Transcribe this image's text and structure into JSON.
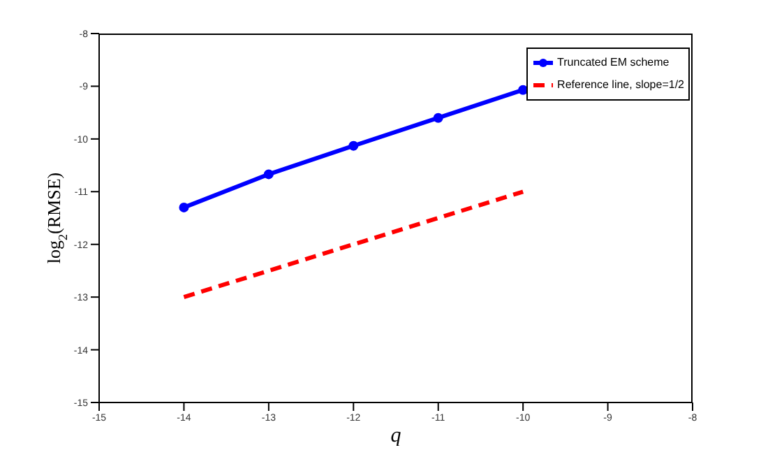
{
  "chart_data": {
    "type": "line",
    "xlabel": "q",
    "ylabel": "log$_{2}$(RMSE)",
    "x": [
      -14,
      -13,
      -12,
      -11,
      -10
    ],
    "series": [
      {
        "name": "Truncated EM scheme",
        "color": "#0000ff",
        "values": [
          -11.3,
          -10.67,
          -10.13,
          -9.6,
          -9.07
        ],
        "marker": "circle",
        "line_style": "solid"
      },
      {
        "name": "Reference line, slope=1/2",
        "color": "#ff0000",
        "values": [
          -13,
          -12.5,
          -12,
          -11.5,
          -11
        ],
        "marker": "none",
        "line_style": "dashed"
      }
    ],
    "xlim": [
      -15,
      -8
    ],
    "xticks": [
      -15,
      -14,
      -13,
      -12,
      -11,
      -10,
      -9,
      -8
    ],
    "ylim": [
      -15,
      -8
    ],
    "yticks": [
      -15,
      -14,
      -13,
      -12,
      -11,
      -10,
      -9,
      -8
    ],
    "grid": false,
    "legend": "top right"
  }
}
